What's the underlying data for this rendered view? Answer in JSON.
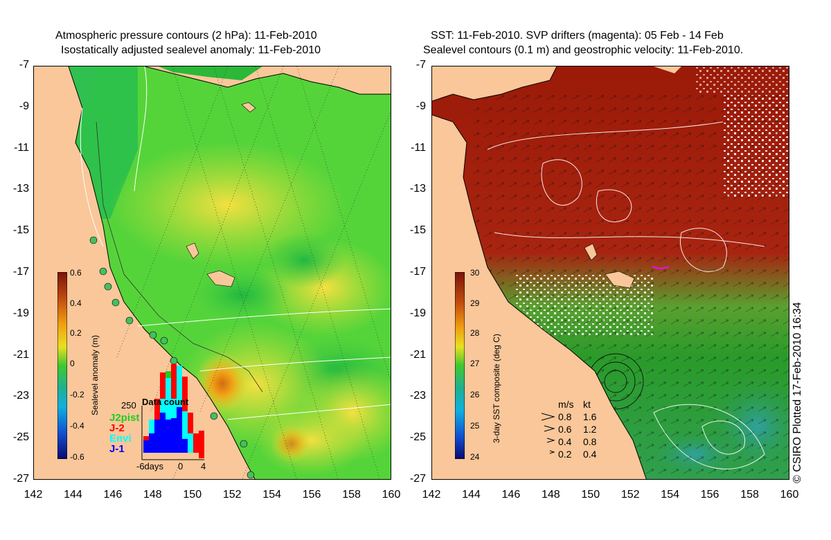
{
  "left": {
    "title1": "Atmospheric pressure contours (2 hPa): 11-Feb-2010",
    "title2": "Isostatically adjusted sealevel anomaly: 11-Feb-2010",
    "colorbar": {
      "title": "Sealevel anomaly (m)",
      "labels": [
        "0.6",
        "0.4",
        "0.2",
        "0",
        "-0.2",
        "-0.4",
        "-0.6"
      ]
    },
    "data_count": {
      "title": "Data count",
      "ymax": "250",
      "series": [
        {
          "name": "J2pist",
          "color": "#22cc22"
        },
        {
          "name": "J-2",
          "color": "#ff0000"
        },
        {
          "name": "Envi",
          "color": "#00ffff"
        },
        {
          "name": "J-1",
          "color": "#0000ff"
        }
      ],
      "xlabels": [
        "-6days",
        "0",
        "4"
      ]
    }
  },
  "right": {
    "title1": "SST: 11-Feb-2010. SVP drifters (magenta): 05 Feb - 14 Feb",
    "title2": "Sealevel contours (0.1 m) and geostrophic velocity: 11-Feb-2010.",
    "colorbar": {
      "title": "3-day SST composite (deg C)",
      "labels": [
        "30",
        "29",
        "28",
        "27",
        "26",
        "25",
        "24"
      ]
    },
    "velocity_legend": {
      "header_ms": "m/s",
      "header_kt": "kt",
      "rows": [
        {
          "ms": "0.8",
          "kt": "1.6"
        },
        {
          "ms": "0.6",
          "kt": "1.2"
        },
        {
          "ms": "0.4",
          "kt": "0.8"
        },
        {
          "ms": "0.2",
          "kt": "0.4"
        }
      ]
    },
    "credit": "© CSIRO Plotted 17-Feb-2010 16:34"
  },
  "axes": {
    "y_ticks": [
      "-7",
      "-9",
      "-11",
      "-13",
      "-15",
      "-17",
      "-19",
      "-21",
      "-23",
      "-25",
      "-27"
    ],
    "x_ticks": [
      "142",
      "144",
      "146",
      "148",
      "150",
      "152",
      "154",
      "156",
      "158",
      "160"
    ]
  },
  "colors": {
    "land": "#f9c79a",
    "sla_mid": "#55d43a",
    "sst_warm": "#9b1a08",
    "sst_mid": "#2a9a2a"
  }
}
